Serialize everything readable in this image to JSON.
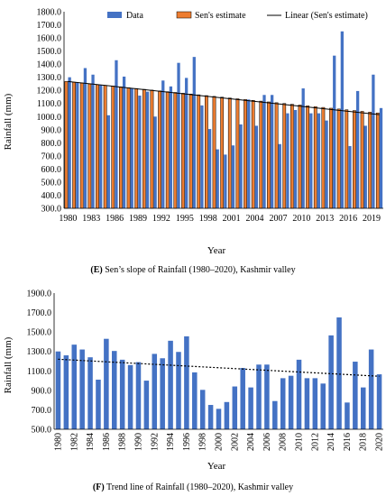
{
  "chart_data": [
    {
      "type": "bar",
      "title": "",
      "caption_letter": "(E)",
      "caption_text": " Sen’s slope of Rainfall (1980–2020), Kashmir valley",
      "xlabel": "Year",
      "ylabel": "Rainfall (mm)",
      "ylim": [
        300,
        1800
      ],
      "ytick_step": 100,
      "grid": false,
      "legend_placement": "top",
      "x": [
        1980,
        1981,
        1982,
        1983,
        1984,
        1985,
        1986,
        1987,
        1988,
        1989,
        1990,
        1991,
        1992,
        1993,
        1994,
        1995,
        1996,
        1997,
        1998,
        1999,
        2000,
        2001,
        2002,
        2003,
        2004,
        2005,
        2006,
        2007,
        2008,
        2009,
        2010,
        2011,
        2012,
        2013,
        2014,
        2015,
        2016,
        2017,
        2018,
        2019,
        2020
      ],
      "x_tick_labels": [
        "1980",
        "1983",
        "1986",
        "1989",
        "1992",
        "1995",
        "1998",
        "2001",
        "2004",
        "2007",
        "2010",
        "2013",
        "2016",
        "2019"
      ],
      "series": [
        {
          "name": "Data",
          "color": "#4472C4",
          "values": [
            1300,
            1260,
            1370,
            1320,
            1240,
            1010,
            1430,
            1305,
            1215,
            1160,
            1190,
            1000,
            1275,
            1230,
            1410,
            1295,
            1455,
            1085,
            905,
            750,
            710,
            780,
            940,
            1130,
            930,
            1165,
            1165,
            790,
            1025,
            1050,
            1215,
            1025,
            1025,
            970,
            1465,
            1650,
            775,
            1195,
            930,
            1320,
            1065
          ]
        },
        {
          "name": "Sen's estimate",
          "color": "#ED7D31",
          "values": [
            1268,
            1262,
            1256,
            1250,
            1244,
            1238,
            1232,
            1226,
            1220,
            1214,
            1208,
            1202,
            1196,
            1190,
            1184,
            1178,
            1172,
            1166,
            1160,
            1154,
            1148,
            1142,
            1136,
            1130,
            1124,
            1118,
            1112,
            1106,
            1100,
            1094,
            1088,
            1082,
            1076,
            1070,
            1064,
            1058,
            1052,
            1046,
            1040,
            1034,
            1028
          ]
        },
        {
          "name": "Linear (Sen's estimate)",
          "color": "#000000",
          "line_start": 1268,
          "line_end": 1015
        }
      ]
    },
    {
      "type": "bar",
      "title": "",
      "caption_letter": "(F)",
      "caption_text": " Trend line of Rainfall (1980–2020), Kashmir valley",
      "xlabel": "Year",
      "ylabel": "Rainfall (mm)",
      "ylim": [
        500,
        1900
      ],
      "ytick_step": 200,
      "grid": false,
      "x": [
        1980,
        1981,
        1982,
        1983,
        1984,
        1985,
        1986,
        1987,
        1988,
        1989,
        1990,
        1991,
        1992,
        1993,
        1994,
        1995,
        1996,
        1997,
        1998,
        1999,
        2000,
        2001,
        2002,
        2003,
        2004,
        2005,
        2006,
        2007,
        2008,
        2009,
        2010,
        2011,
        2012,
        2013,
        2014,
        2015,
        2016,
        2017,
        2018,
        2019,
        2020
      ],
      "x_tick_labels": [
        "1980",
        "1982",
        "1984",
        "1986",
        "1988",
        "1990",
        "1992",
        "1994",
        "1996",
        "1998",
        "2000",
        "2002",
        "2004",
        "2006",
        "2008",
        "2010",
        "2012",
        "2014",
        "2016",
        "2018",
        "2020"
      ],
      "series": [
        {
          "name": "Data",
          "color": "#4472C4",
          "values": [
            1300,
            1260,
            1370,
            1320,
            1240,
            1010,
            1430,
            1305,
            1215,
            1160,
            1190,
            1000,
            1275,
            1230,
            1410,
            1295,
            1455,
            1085,
            905,
            750,
            710,
            780,
            940,
            1130,
            930,
            1165,
            1165,
            790,
            1025,
            1050,
            1215,
            1025,
            1025,
            970,
            1465,
            1650,
            775,
            1195,
            930,
            1320,
            1065
          ]
        },
        {
          "name": "Trend",
          "color": "#000000",
          "line_start": 1220,
          "line_end": 1045
        }
      ]
    }
  ]
}
